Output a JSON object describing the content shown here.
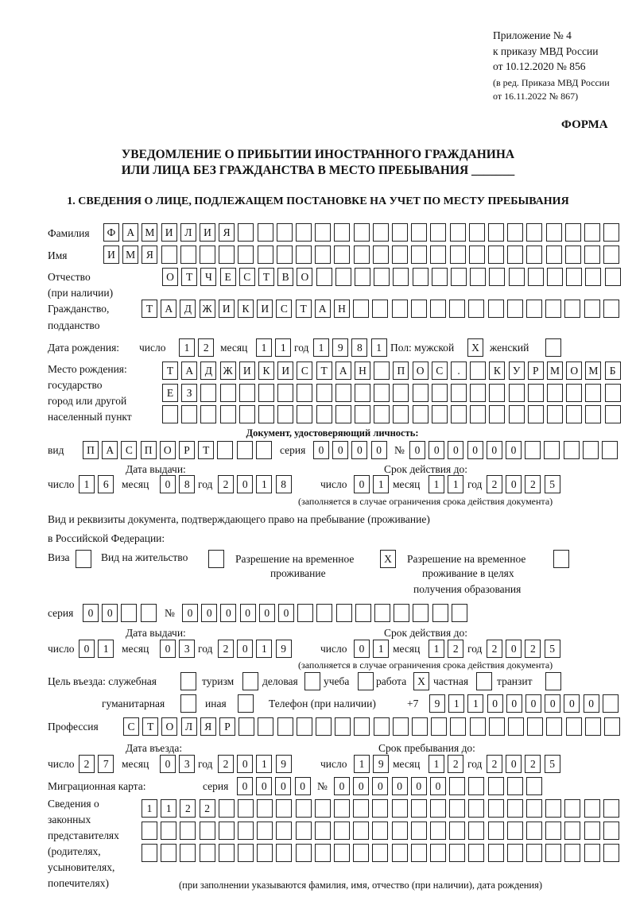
{
  "header": {
    "appendix": [
      "Приложение № 4",
      "к приказу МВД России",
      "от 10.12.2020 № 856"
    ],
    "revision": [
      "(в ред. Приказа МВД России",
      "от 16.11.2022 № 867)"
    ],
    "forma": "ФОРМА",
    "title_line1": "УВЕДОМЛЕНИЕ О ПРИБЫТИИ ИНОСТРАННОГО ГРАЖДАНИНА",
    "title_line2": "ИЛИ ЛИЦА БЕЗ ГРАЖДАНСТВА В МЕСТО ПРЕБЫВАНИЯ _______",
    "section1": "1. СВЕДЕНИЯ О ЛИЦЕ, ПОДЛЕЖАЩЕМ ПОСТАНОВКЕ НА УЧЕТ ПО МЕСТУ ПРЕБЫВАНИЯ"
  },
  "labels": {
    "surname": "Фамилия",
    "name": "Имя",
    "patronymic": "Отчество",
    "if_any": "(при наличии)",
    "citizenship": "Гражданство,",
    "nationality": "подданство",
    "dob": "Дата рождения:",
    "day": "число",
    "month": "месяц",
    "year": "год",
    "sex_male": "Пол: мужской",
    "sex_female": "женский",
    "birthplace": [
      "Место рождения:",
      "государство",
      "город или другой",
      "населенный пункт"
    ],
    "id_doc": "Документ, удостоверяющий личность:",
    "kind": "вид",
    "series": "серия",
    "number": "№",
    "issue_date": "Дата выдачи:",
    "valid_until": "Срок действия до:",
    "validity_note": "(заполняется в случае ограничения срока действия документа)",
    "stay_doc_line1": "Вид и реквизиты документа, подтверждающего право на пребывание (проживание)",
    "stay_doc_line2": "в Российской Федерации:",
    "visa": "Виза",
    "residence_permit": "Вид на жительство",
    "temp_residence": [
      "Разрешение на временное",
      "проживание"
    ],
    "temp_residence_edu": [
      "Разрешение на временное",
      "проживание в целях",
      "получения образования"
    ],
    "purpose": "Цель въезда: служебная",
    "tourism": "туризм",
    "business": "деловая",
    "study": "учеба",
    "work": "работа",
    "private": "частная",
    "transit": "транзит",
    "humanitarian": "гуманитарная",
    "other": "иная",
    "phone": "Телефон (при наличии)",
    "phone_prefix": "+7",
    "profession": "Профессия",
    "entry_date": "Дата въезда:",
    "stay_until": "Срок пребывания до:",
    "migration_card": "Миграционная карта:",
    "legal_reps": [
      "Сведения о",
      "законных",
      "представителях",
      "(родителях,",
      "усыновителях,",
      "попечителях)"
    ],
    "legal_reps_note": "(при заполнении указываются фамилия, имя, отчество (при наличии), дата рождения)"
  },
  "fields": {
    "surname": [
      "Ф",
      "А",
      "М",
      "И",
      "Л",
      "И",
      "Я"
    ],
    "name": [
      "И",
      "М",
      "Я"
    ],
    "patronymic": [
      "О",
      "Т",
      "Ч",
      "Е",
      "С",
      "Т",
      "В",
      "О"
    ],
    "citizenship": [
      "Т",
      "А",
      "Д",
      "Ж",
      "И",
      "К",
      "И",
      "С",
      "Т",
      "А",
      "Н"
    ],
    "dob_day": [
      "1",
      "2"
    ],
    "dob_month": [
      "1",
      "1"
    ],
    "dob_year": [
      "1",
      "9",
      "8",
      "1"
    ],
    "sex_male": "X",
    "sex_female": "",
    "birthplace_1": [
      "Т",
      "А",
      "Д",
      "Ж",
      "И",
      "К",
      "И",
      "С",
      "Т",
      "А",
      "Н",
      "",
      "П",
      "О",
      "С",
      ".",
      "",
      "К",
      "У",
      "Р",
      "М",
      "О",
      "М",
      "Б"
    ],
    "birthplace_2": [
      "Е",
      "З"
    ],
    "birthplace_3": [],
    "doc_kind": [
      "П",
      "А",
      "С",
      "П",
      "О",
      "Р",
      "Т"
    ],
    "doc_series": [
      "0",
      "0",
      "0",
      "0"
    ],
    "doc_number": [
      "0",
      "0",
      "0",
      "0",
      "0",
      "0"
    ],
    "doc_issue_day": [
      "1",
      "6"
    ],
    "doc_issue_month": [
      "0",
      "8"
    ],
    "doc_issue_year": [
      "2",
      "0",
      "1",
      "8"
    ],
    "doc_valid_day": [
      "0",
      "1"
    ],
    "doc_valid_month": [
      "1",
      "1"
    ],
    "doc_valid_year": [
      "2",
      "0",
      "2",
      "5"
    ],
    "visa": "",
    "residence_permit": "",
    "temp_residence": "X",
    "temp_residence_edu": "",
    "stay_series": [
      "0",
      "0"
    ],
    "stay_number": [
      "0",
      "0",
      "0",
      "0",
      "0",
      "0"
    ],
    "stay_issue_day": [
      "0",
      "1"
    ],
    "stay_issue_month": [
      "0",
      "3"
    ],
    "stay_issue_year": [
      "2",
      "0",
      "1",
      "9"
    ],
    "stay_valid_day": [
      "0",
      "1"
    ],
    "stay_valid_month": [
      "1",
      "2"
    ],
    "stay_valid_year": [
      "2",
      "0",
      "2",
      "5"
    ],
    "purpose_official": "",
    "purpose_tourism": "",
    "purpose_business": "",
    "purpose_study": "",
    "purpose_work": "X",
    "purpose_private": "",
    "purpose_transit": "",
    "purpose_humanitarian": "",
    "purpose_other": "",
    "phone": [
      "9",
      "1",
      "1",
      "0",
      "0",
      "0",
      "0",
      "0",
      "0"
    ],
    "profession": [
      "С",
      "Т",
      "О",
      "Л",
      "Я",
      "Р"
    ],
    "entry_day": [
      "2",
      "7"
    ],
    "entry_month": [
      "0",
      "3"
    ],
    "entry_year": [
      "2",
      "0",
      "1",
      "9"
    ],
    "stay_until_day": [
      "1",
      "9"
    ],
    "stay_until_month": [
      "1",
      "2"
    ],
    "stay_until_year": [
      "2",
      "0",
      "2",
      "5"
    ],
    "mig_series": [
      "0",
      "0",
      "0",
      "0"
    ],
    "mig_number": [
      "0",
      "0",
      "0",
      "0",
      "0",
      "0"
    ],
    "legal_reps_1": [
      "1",
      "1",
      "2",
      "2"
    ],
    "legal_reps_2": [],
    "legal_reps_3": []
  }
}
